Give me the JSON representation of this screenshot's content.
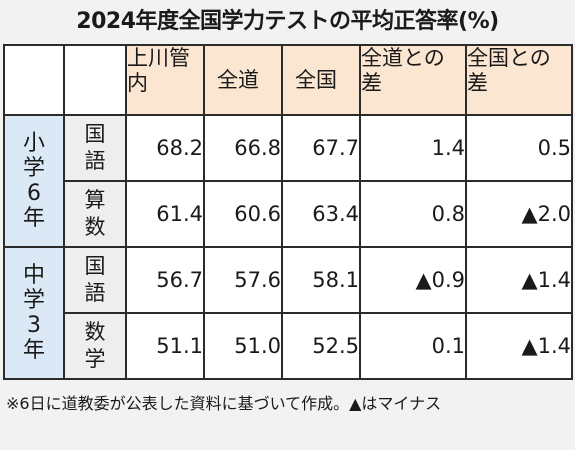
{
  "title": "2024年度全国学力テストの平均正答率(%)",
  "headers": [
    "上川管内",
    "全道",
    "全国",
    "全道との差",
    "全国との差"
  ],
  "grades": [
    {
      "label": "小学6年",
      "subjects": [
        {
          "name": "国語",
          "values": [
            "68.2",
            "66.8",
            "67.7",
            "1.4",
            "0.5"
          ]
        },
        {
          "name": "算数",
          "values": [
            "61.4",
            "60.6",
            "63.4",
            "0.8",
            "▲2.0"
          ]
        }
      ]
    },
    {
      "label": "中学3年",
      "subjects": [
        {
          "name": "国語",
          "values": [
            "56.7",
            "57.6",
            "58.1",
            "▲0.9",
            "▲1.4"
          ]
        },
        {
          "name": "数学",
          "values": [
            "51.1",
            "51.0",
            "52.5",
            "0.1",
            "▲1.4"
          ]
        }
      ]
    }
  ],
  "note": "※6日に道教委が公表した資料に基づいて作成。▲はマイナス"
}
